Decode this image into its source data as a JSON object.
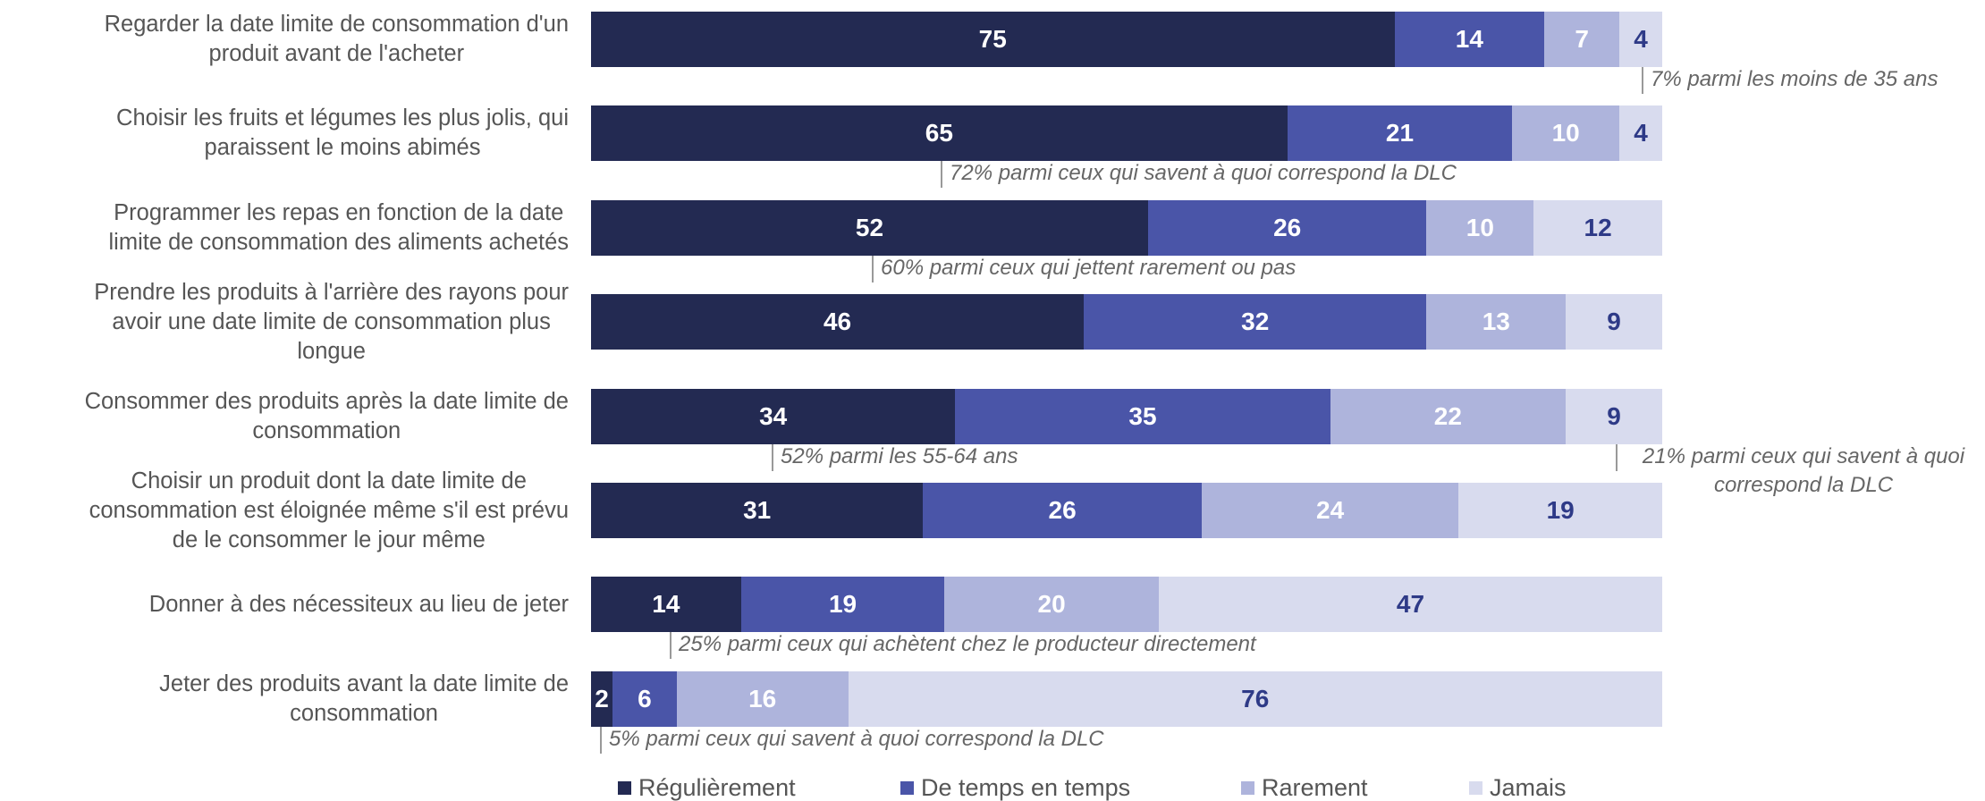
{
  "chart_data": {
    "type": "stacked-bar-horizontal",
    "categories": [
      "Regarder la date limite de consommation d'un\nproduit avant de l'acheter",
      "Choisir les fruits et légumes les plus jolis, qui\nparaissent le moins abimés",
      "Programmer les repas en fonction de la date\nlimite de consommation des aliments achetés",
      "Prendre les produits à l'arrière des rayons pour\navoir une date limite de consommation plus\nlongue",
      "Consommer des produits après la date limite de\nconsommation",
      "Choisir un produit dont la date limite de\nconsommation est éloignée même s'il est prévu\nde le consommer le jour même",
      "Donner à des nécessiteux au lieu de jeter",
      "Jeter des produits avant la date limite de\nconsommation"
    ],
    "series": [
      {
        "name": "Régulièrement",
        "color": "#232a52",
        "label_color": "#ffffff",
        "values": [
          75,
          65,
          52,
          46,
          34,
          31,
          14,
          2
        ]
      },
      {
        "name": "De temps en temps",
        "color": "#4a55a8",
        "label_color": "#ffffff",
        "values": [
          14,
          21,
          26,
          32,
          35,
          26,
          19,
          6
        ]
      },
      {
        "name": "Rarement",
        "color": "#aeb4dc",
        "label_color": "#ffffff",
        "values": [
          7,
          10,
          10,
          13,
          22,
          24,
          20,
          16
        ]
      },
      {
        "name": "Jamais",
        "color": "#d8dbee",
        "label_color": "#2e3a87",
        "values": [
          4,
          4,
          12,
          9,
          9,
          19,
          47,
          76
        ]
      }
    ],
    "xlim": [
      0,
      100
    ],
    "annotations": [
      "7% parmi les moins de 35 ans",
      "72% parmi ceux qui savent à quoi correspond la DLC",
      "60% parmi ceux qui jettent rarement ou pas",
      "52% parmi les 55-64 ans",
      "21% parmi ceux qui savent à quoi correspond la DLC",
      "25% parmi ceux qui achètent chez le producteur directement",
      "5% parmi ceux qui savent à quoi correspond la DLC"
    ]
  }
}
